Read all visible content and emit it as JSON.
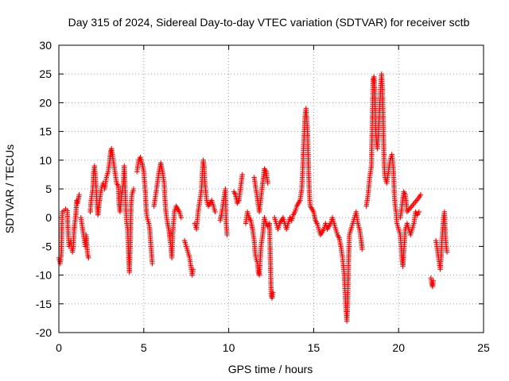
{
  "chart_data": {
    "type": "scatter",
    "title": "Day 315 of 2024, Sidereal Day-to-day VTEC variation (SDTVAR) for receiver sctb",
    "xlabel": "GPS time / hours",
    "ylabel": "SDTVAR / TECUs",
    "xlim": [
      0,
      25
    ],
    "ylim": [
      -20,
      30
    ],
    "xticks": [
      "0",
      "5",
      "10",
      "15",
      "20",
      "25"
    ],
    "yticks": [
      "-20",
      "-15",
      "-10",
      "-5",
      "0",
      "5",
      "10",
      "15",
      "20",
      "25",
      "30"
    ],
    "grid": true,
    "marker": "plus",
    "color": "#ff0000",
    "series": [
      {
        "name": "SDTVAR",
        "segments": [
          [
            [
              0.0,
              -7
            ],
            [
              0.08,
              -8
            ],
            [
              0.15,
              -6
            ],
            [
              0.2,
              1.0
            ],
            [
              0.3,
              1.2
            ],
            [
              0.4,
              1.5
            ],
            [
              0.5,
              1.2
            ],
            [
              0.55,
              -3
            ],
            [
              0.6,
              -5
            ],
            [
              0.7,
              -4
            ],
            [
              0.8,
              -6
            ],
            [
              0.85,
              -5
            ],
            [
              0.9,
              -2
            ],
            [
              1.0,
              0.5
            ],
            [
              1.05,
              3
            ],
            [
              1.1,
              2.5
            ],
            [
              1.2,
              4
            ]
          ],
          [
            [
              1.3,
              0
            ],
            [
              1.4,
              -2
            ],
            [
              1.5,
              -4
            ],
            [
              1.55,
              -5
            ],
            [
              1.6,
              -3
            ],
            [
              1.7,
              -6.5
            ],
            [
              1.75,
              -7
            ]
          ],
          [
            [
              1.85,
              1
            ],
            [
              1.9,
              3
            ],
            [
              2.0,
              5
            ],
            [
              2.05,
              8
            ],
            [
              2.1,
              9
            ],
            [
              2.15,
              7
            ],
            [
              2.2,
              5
            ],
            [
              2.25,
              2
            ],
            [
              2.3,
              0.5
            ],
            [
              2.4,
              3
            ],
            [
              2.5,
              5
            ],
            [
              2.6,
              6
            ],
            [
              2.7,
              5
            ],
            [
              2.8,
              7
            ],
            [
              2.9,
              8
            ],
            [
              3.0,
              10
            ],
            [
              3.05,
              11.5
            ],
            [
              3.1,
              12
            ],
            [
              3.15,
              11
            ],
            [
              3.2,
              10
            ],
            [
              3.3,
              8
            ],
            [
              3.4,
              6
            ],
            [
              3.5,
              5.5
            ],
            [
              3.55,
              2
            ],
            [
              3.6,
              1
            ],
            [
              3.7,
              4
            ],
            [
              3.8,
              6
            ],
            [
              3.85,
              9
            ],
            [
              3.9,
              5
            ],
            [
              3.95,
              1
            ],
            [
              4.0,
              -1
            ],
            [
              4.05,
              -2
            ],
            [
              4.1,
              -6
            ],
            [
              4.15,
              -9.5
            ],
            [
              4.2,
              -5
            ],
            [
              4.25,
              2
            ],
            [
              4.3,
              4
            ],
            [
              4.4,
              5
            ]
          ],
          [
            [
              4.6,
              8
            ],
            [
              4.7,
              10
            ],
            [
              4.8,
              10.5
            ],
            [
              4.9,
              9.5
            ],
            [
              5.0,
              8
            ],
            [
              5.05,
              6
            ],
            [
              5.1,
              4
            ],
            [
              5.15,
              1
            ],
            [
              5.2,
              0
            ],
            [
              5.3,
              -1
            ],
            [
              5.35,
              -2
            ],
            [
              5.4,
              -4
            ],
            [
              5.45,
              -6
            ],
            [
              5.5,
              -8
            ]
          ],
          [
            [
              5.6,
              2
            ],
            [
              5.7,
              4
            ],
            [
              5.8,
              6
            ],
            [
              5.9,
              8
            ],
            [
              6.0,
              9.5
            ],
            [
              6.1,
              8
            ],
            [
              6.2,
              6
            ],
            [
              6.25,
              3
            ],
            [
              6.3,
              1
            ],
            [
              6.4,
              -1
            ],
            [
              6.5,
              -2.5
            ],
            [
              6.55,
              -4
            ],
            [
              6.6,
              -5
            ],
            [
              6.65,
              -7
            ],
            [
              6.7,
              -3
            ],
            [
              6.8,
              1
            ],
            [
              6.9,
              2
            ],
            [
              7.0,
              1.5
            ],
            [
              7.1,
              1
            ],
            [
              7.2,
              0
            ]
          ],
          [
            [
              7.4,
              -4
            ],
            [
              7.5,
              -5
            ],
            [
              7.6,
              -6
            ],
            [
              7.7,
              -7
            ],
            [
              7.75,
              -8
            ],
            [
              7.8,
              -9
            ],
            [
              7.85,
              -10
            ],
            [
              7.9,
              -9
            ]
          ],
          [
            [
              8.0,
              -1
            ],
            [
              8.1,
              -2
            ],
            [
              8.2,
              1
            ],
            [
              8.3,
              3
            ],
            [
              8.4,
              5
            ],
            [
              8.45,
              8
            ],
            [
              8.5,
              10
            ],
            [
              8.55,
              9
            ],
            [
              8.6,
              6
            ],
            [
              8.7,
              3
            ],
            [
              8.8,
              2
            ],
            [
              8.9,
              2.5
            ],
            [
              9.0,
              3
            ],
            [
              9.1,
              2
            ],
            [
              9.2,
              1
            ]
          ],
          [
            [
              9.5,
              -0.5
            ],
            [
              9.6,
              1
            ],
            [
              9.7,
              3
            ],
            [
              9.8,
              5
            ],
            [
              9.85,
              -1
            ],
            [
              9.9,
              -3
            ]
          ],
          [
            [
              10.3,
              4.5
            ],
            [
              10.4,
              4
            ],
            [
              10.5,
              2.5
            ],
            [
              10.6,
              3
            ],
            [
              10.8,
              7.5
            ]
          ],
          [
            [
              11.0,
              -1
            ],
            [
              11.1,
              1
            ],
            [
              11.2,
              0
            ],
            [
              11.3,
              -0.5
            ],
            [
              11.4,
              -2
            ],
            [
              11.5,
              -4
            ],
            [
              11.55,
              -6
            ],
            [
              11.6,
              -7
            ],
            [
              11.7,
              -8
            ],
            [
              11.75,
              -9.5
            ],
            [
              11.8,
              -10
            ],
            [
              11.9,
              -5
            ],
            [
              12.0,
              -3
            ],
            [
              12.1,
              0
            ],
            [
              12.2,
              -1
            ],
            [
              12.3,
              -1.5
            ],
            [
              12.4,
              -1
            ],
            [
              12.5,
              -13.5
            ],
            [
              12.55,
              -14
            ],
            [
              12.6,
              -13
            ]
          ],
          [
            [
              11.5,
              7
            ],
            [
              11.6,
              5
            ],
            [
              11.7,
              3
            ],
            [
              11.8,
              1
            ],
            [
              12.1,
              8.5
            ],
            [
              12.2,
              8
            ],
            [
              12.3,
              6
            ]
          ],
          [
            [
              12.7,
              0
            ],
            [
              12.8,
              -1
            ],
            [
              12.9,
              -2
            ],
            [
              13.0,
              -1
            ],
            [
              13.1,
              -0.5
            ],
            [
              13.2,
              0
            ],
            [
              13.3,
              -1
            ],
            [
              13.4,
              -2
            ],
            [
              13.5,
              -1
            ],
            [
              13.6,
              0
            ],
            [
              13.7,
              -0.5
            ],
            [
              13.8,
              0.5
            ],
            [
              13.9,
              1
            ],
            [
              14.0,
              2
            ],
            [
              14.1,
              2.5
            ],
            [
              14.2,
              3
            ],
            [
              14.3,
              5
            ],
            [
              14.35,
              8
            ],
            [
              14.4,
              12
            ],
            [
              14.45,
              15
            ],
            [
              14.5,
              18
            ],
            [
              14.55,
              19
            ],
            [
              14.6,
              17
            ],
            [
              14.65,
              14
            ],
            [
              14.7,
              8
            ],
            [
              14.75,
              4
            ],
            [
              14.8,
              2
            ],
            [
              14.9,
              1.5
            ],
            [
              15.0,
              1
            ],
            [
              15.1,
              -0.5
            ],
            [
              15.2,
              -1
            ],
            [
              15.3,
              -2
            ],
            [
              15.4,
              -3
            ],
            [
              15.5,
              -2.5
            ],
            [
              15.6,
              -2
            ],
            [
              15.7,
              -1
            ],
            [
              15.8,
              -2
            ],
            [
              15.9,
              -1.5
            ],
            [
              16.0,
              -1
            ],
            [
              16.1,
              0
            ],
            [
              16.2,
              -1
            ],
            [
              16.3,
              -2
            ],
            [
              16.4,
              -3
            ],
            [
              16.5,
              -3.5
            ],
            [
              16.6,
              -5
            ],
            [
              16.7,
              -7
            ],
            [
              16.8,
              -10
            ],
            [
              16.85,
              -13
            ],
            [
              16.9,
              -16
            ],
            [
              16.95,
              -18
            ],
            [
              17.0,
              -15
            ],
            [
              17.05,
              -8
            ],
            [
              17.1,
              -3
            ],
            [
              17.2,
              -2
            ],
            [
              17.3,
              -1
            ],
            [
              17.4,
              0
            ],
            [
              17.5,
              1
            ],
            [
              17.6,
              -1
            ],
            [
              17.7,
              -2
            ],
            [
              17.8,
              -4
            ],
            [
              17.85,
              -5.5
            ]
          ],
          [
            [
              18.1,
              2
            ],
            [
              18.2,
              4
            ],
            [
              18.3,
              7
            ],
            [
              18.4,
              9
            ],
            [
              18.5,
              24
            ],
            [
              18.55,
              24.5
            ],
            [
              18.6,
              22
            ],
            [
              18.65,
              15
            ],
            [
              18.7,
              13
            ],
            [
              18.75,
              12
            ],
            [
              18.8,
              14
            ],
            [
              18.85,
              17
            ],
            [
              18.9,
              20
            ],
            [
              18.95,
              23
            ],
            [
              19.0,
              25
            ],
            [
              19.05,
              22
            ],
            [
              19.1,
              16
            ],
            [
              19.15,
              9
            ],
            [
              19.2,
              7
            ],
            [
              19.3,
              6
            ],
            [
              19.4,
              8
            ],
            [
              19.5,
              10
            ],
            [
              19.6,
              11
            ],
            [
              19.65,
              10
            ],
            [
              19.7,
              8
            ],
            [
              19.75,
              4
            ],
            [
              19.8,
              2
            ],
            [
              19.85,
              1
            ],
            [
              19.9,
              -1
            ],
            [
              20.0,
              -2
            ],
            [
              20.1,
              -3
            ],
            [
              20.15,
              -5
            ],
            [
              20.2,
              -7
            ],
            [
              20.25,
              -8.5
            ],
            [
              20.3,
              -6
            ],
            [
              20.4,
              -2
            ],
            [
              20.5,
              -1
            ],
            [
              20.6,
              -2
            ],
            [
              20.7,
              -3
            ],
            [
              20.8,
              -2
            ],
            [
              20.9,
              -1
            ],
            [
              21.0,
              1
            ],
            [
              21.1,
              0.5
            ],
            [
              21.2,
              1
            ]
          ],
          [
            [
              20.1,
              0
            ],
            [
              20.2,
              2
            ],
            [
              20.3,
              4.5
            ],
            [
              20.4,
              4
            ],
            [
              20.5,
              1
            ],
            [
              21.2,
              3.5
            ],
            [
              21.3,
              4
            ]
          ],
          [
            [
              21.9,
              -10.5
            ],
            [
              21.95,
              -11.5
            ],
            [
              22.0,
              -12
            ],
            [
              22.05,
              -11
            ]
          ],
          [
            [
              22.2,
              -4
            ],
            [
              22.3,
              -6
            ],
            [
              22.4,
              -8
            ],
            [
              22.45,
              -9
            ],
            [
              22.5,
              -7
            ],
            [
              22.55,
              -4
            ],
            [
              22.6,
              -2
            ],
            [
              22.65,
              0
            ],
            [
              22.7,
              1
            ],
            [
              22.75,
              -3
            ],
            [
              22.8,
              -5
            ],
            [
              22.85,
              -6
            ]
          ]
        ]
      }
    ]
  }
}
